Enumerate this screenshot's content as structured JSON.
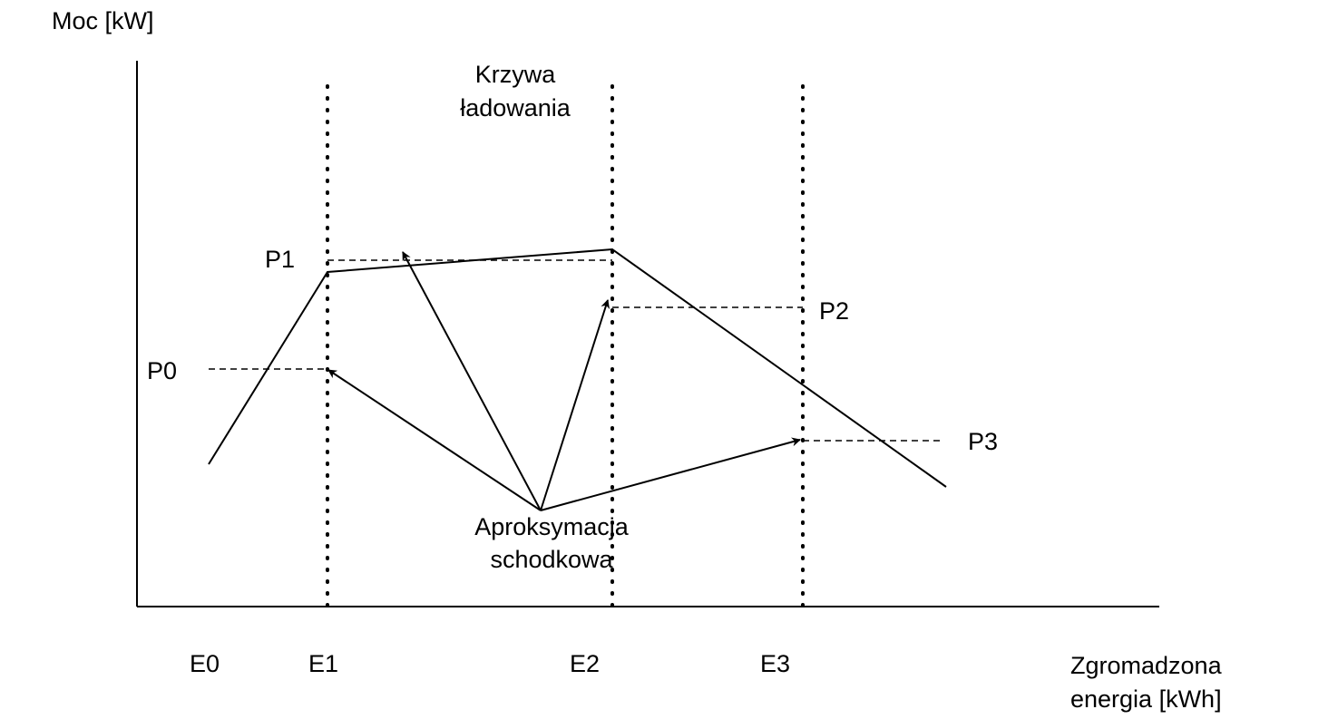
{
  "axes": {
    "y_label": "Moc [kW]",
    "x_label_line1": "Zgromadzona",
    "x_label_line2": "energia [kWh]"
  },
  "energy_ticks": [
    "E0",
    "E1",
    "E2",
    "E3"
  ],
  "power_levels": [
    "P0",
    "P1",
    "P2",
    "P3"
  ],
  "annotations": {
    "charging_curve_line1": "Krzywa",
    "charging_curve_line2": "ładowania",
    "approximation_line1": "Aproksymacja",
    "approximation_line2": "schodkowa"
  },
  "colors": {
    "stroke": "#000000",
    "background": "#ffffff"
  }
}
